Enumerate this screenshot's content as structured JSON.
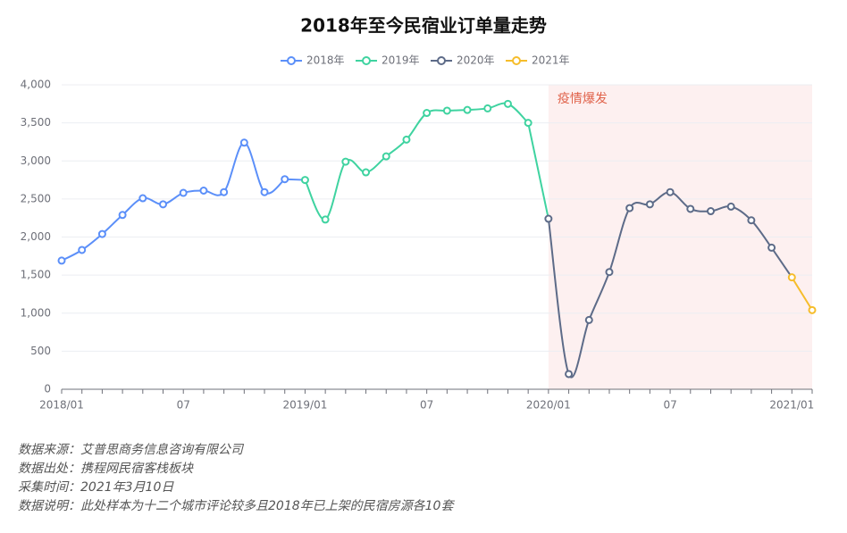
{
  "chart_data": {
    "type": "line",
    "title": "2018年至今民宿业订单量走势",
    "categories": [
      "2018/01",
      null,
      null,
      null,
      null,
      null,
      "07",
      null,
      null,
      null,
      null,
      null,
      "2019/01",
      null,
      null,
      null,
      null,
      null,
      "07",
      null,
      null,
      null,
      null,
      null,
      "2020/01",
      null,
      null,
      null,
      null,
      null,
      "07",
      null,
      null,
      null,
      null,
      null,
      "2021/01",
      null
    ],
    "series": [
      {
        "name": "2018年",
        "color": "#5b8ff9",
        "values": [
          1690,
          1830,
          2040,
          2290,
          2510,
          2430,
          2580,
          2610,
          2590,
          3240,
          2590,
          2760,
          null,
          null,
          null,
          null,
          null,
          null,
          null,
          null,
          null,
          null,
          null,
          null,
          null,
          null,
          null,
          null,
          null,
          null,
          null,
          null,
          null,
          null,
          null,
          null,
          null,
          null
        ]
      },
      {
        "name": "2019年",
        "color": "#3fd3a0",
        "values": [
          null,
          null,
          null,
          null,
          null,
          null,
          null,
          null,
          null,
          null,
          null,
          null,
          2750,
          2230,
          2990,
          2850,
          3060,
          3280,
          3630,
          3660,
          3670,
          3690,
          3750,
          3500,
          null,
          null,
          null,
          null,
          null,
          null,
          null,
          null,
          null,
          null,
          null,
          null,
          null,
          null
        ]
      },
      {
        "name": "2020年",
        "color": "#5d6b88",
        "values": [
          null,
          null,
          null,
          null,
          null,
          null,
          null,
          null,
          null,
          null,
          null,
          null,
          null,
          null,
          null,
          null,
          null,
          null,
          null,
          null,
          null,
          null,
          null,
          null,
          2240,
          200,
          910,
          1540,
          2380,
          2430,
          2590,
          2370,
          2340,
          2400,
          2220,
          1860,
          null,
          null
        ]
      },
      {
        "name": "2021年",
        "color": "#f6bd2b",
        "values": [
          null,
          null,
          null,
          null,
          null,
          null,
          null,
          null,
          null,
          null,
          null,
          null,
          null,
          null,
          null,
          null,
          null,
          null,
          null,
          null,
          null,
          null,
          null,
          null,
          null,
          null,
          null,
          null,
          null,
          null,
          null,
          null,
          null,
          null,
          null,
          null,
          1470,
          1040
        ]
      }
    ],
    "ylim": [
      0,
      4000
    ],
    "yticks": [
      0,
      500,
      {
        "value": 1000,
        "label": "1,000"
      },
      {
        "value": 1500,
        "label": "1,500"
      },
      {
        "value": 2000,
        "label": "2,000"
      },
      {
        "value": 2500,
        "label": "2,500"
      },
      {
        "value": 3000,
        "label": "3,000"
      },
      {
        "value": 3500,
        "label": "3,500"
      },
      {
        "value": 4000,
        "label": "4,000"
      }
    ],
    "grid": true,
    "legend_position": "top",
    "mark_area": {
      "label": "疫情爆发",
      "from": "2020/01",
      "color": "#fdf0f0",
      "label_color": "#e0624a"
    }
  },
  "footnotes": [
    "数据来源：艾普思商务信息咨询有限公司",
    "数据出处：携程网民宿客栈板块",
    "采集时间：2021年3月10日",
    "数据说明：此处样本为十二个城市评论较多且2018年已上架的民宿房源各10套"
  ]
}
